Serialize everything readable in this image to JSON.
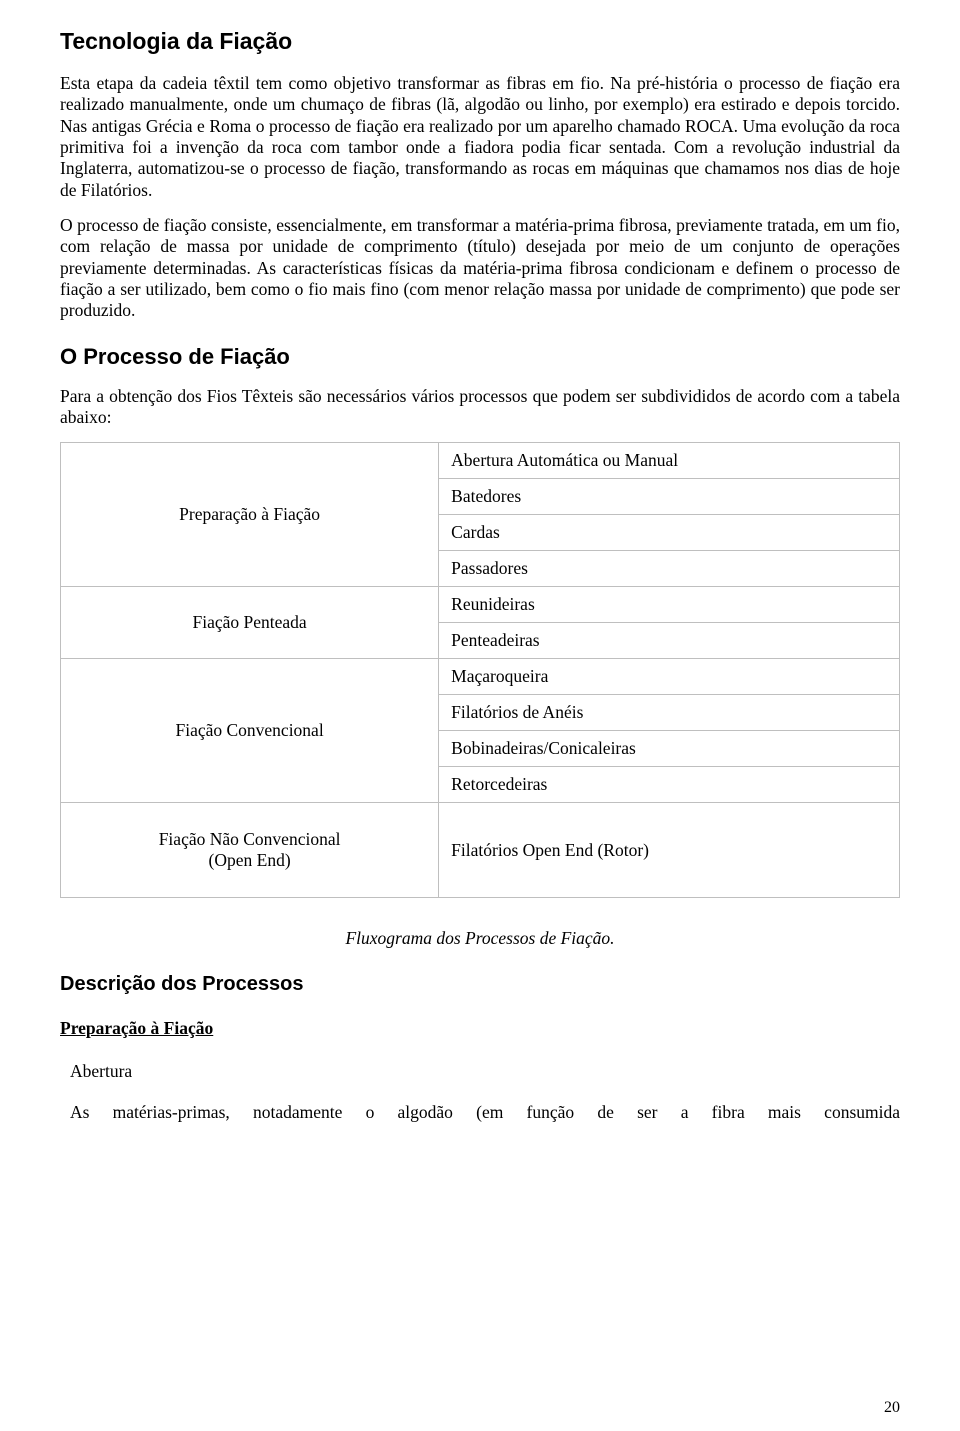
{
  "title": "Tecnologia da Fiação",
  "para1": "Esta etapa da cadeia têxtil tem como objetivo transformar as fibras em fio. Na pré-história o processo de fiação era realizado manualmente, onde um chumaço de fibras (lã, algodão ou linho, por exemplo) era estirado e depois torcido. Nas antigas Grécia e Roma o processo de fiação era realizado por um aparelho chamado ROCA. Uma evolução da roca primitiva foi a invenção da roca com tambor onde a fiadora podia ficar sentada. Com a revolução industrial da Inglaterra, automatizou-se o processo de fiação, transformando as rocas em máquinas que chamamos nos dias de hoje de Filatórios.",
  "para2": "O processo de fiação consiste, essencialmente, em transformar a matéria-prima fibrosa, previamente tratada, em um fio, com relação de massa por unidade de comprimento (título) desejada por meio de um conjunto de operações previamente determinadas. As características físicas da matéria-prima fibrosa condicionam e definem o processo de fiação a ser utilizado, bem como o fio mais fino (com menor relação massa por unidade de comprimento) que pode ser produzido.",
  "section2": "O Processo de Fiação",
  "para3": "Para a obtenção dos Fios Têxteis são necessários vários processos que podem ser subdivididos de acordo com a tabela abaixo:",
  "table": {
    "rows": [
      {
        "left": "Preparação à Fiação",
        "right": [
          "Abertura Automática ou Manual",
          "Batedores",
          "Cardas",
          "Passadores"
        ]
      },
      {
        "left": "Fiação Penteada",
        "right": [
          "Reunideiras",
          "Penteadeiras"
        ]
      },
      {
        "left": "Fiação Convencional",
        "right": [
          "Maçaroqueira",
          "Filatórios de Anéis",
          "Bobinadeiras/Conicaleiras",
          "Retorcedeiras"
        ]
      }
    ],
    "subrow": {
      "left": "Fiação Não Convencional\n(Open End)",
      "right": "Filatórios Open End (Rotor)"
    }
  },
  "caption": "Fluxograma dos Processos de Fiação.",
  "section3": "Descrição dos Processos",
  "sub_u": "Preparação à Fiação",
  "sub_label": "Abertura",
  "last_line": "As matérias-primas, notadamente o algodão (em função de ser a fibra mais consumida",
  "page_num": "20"
}
